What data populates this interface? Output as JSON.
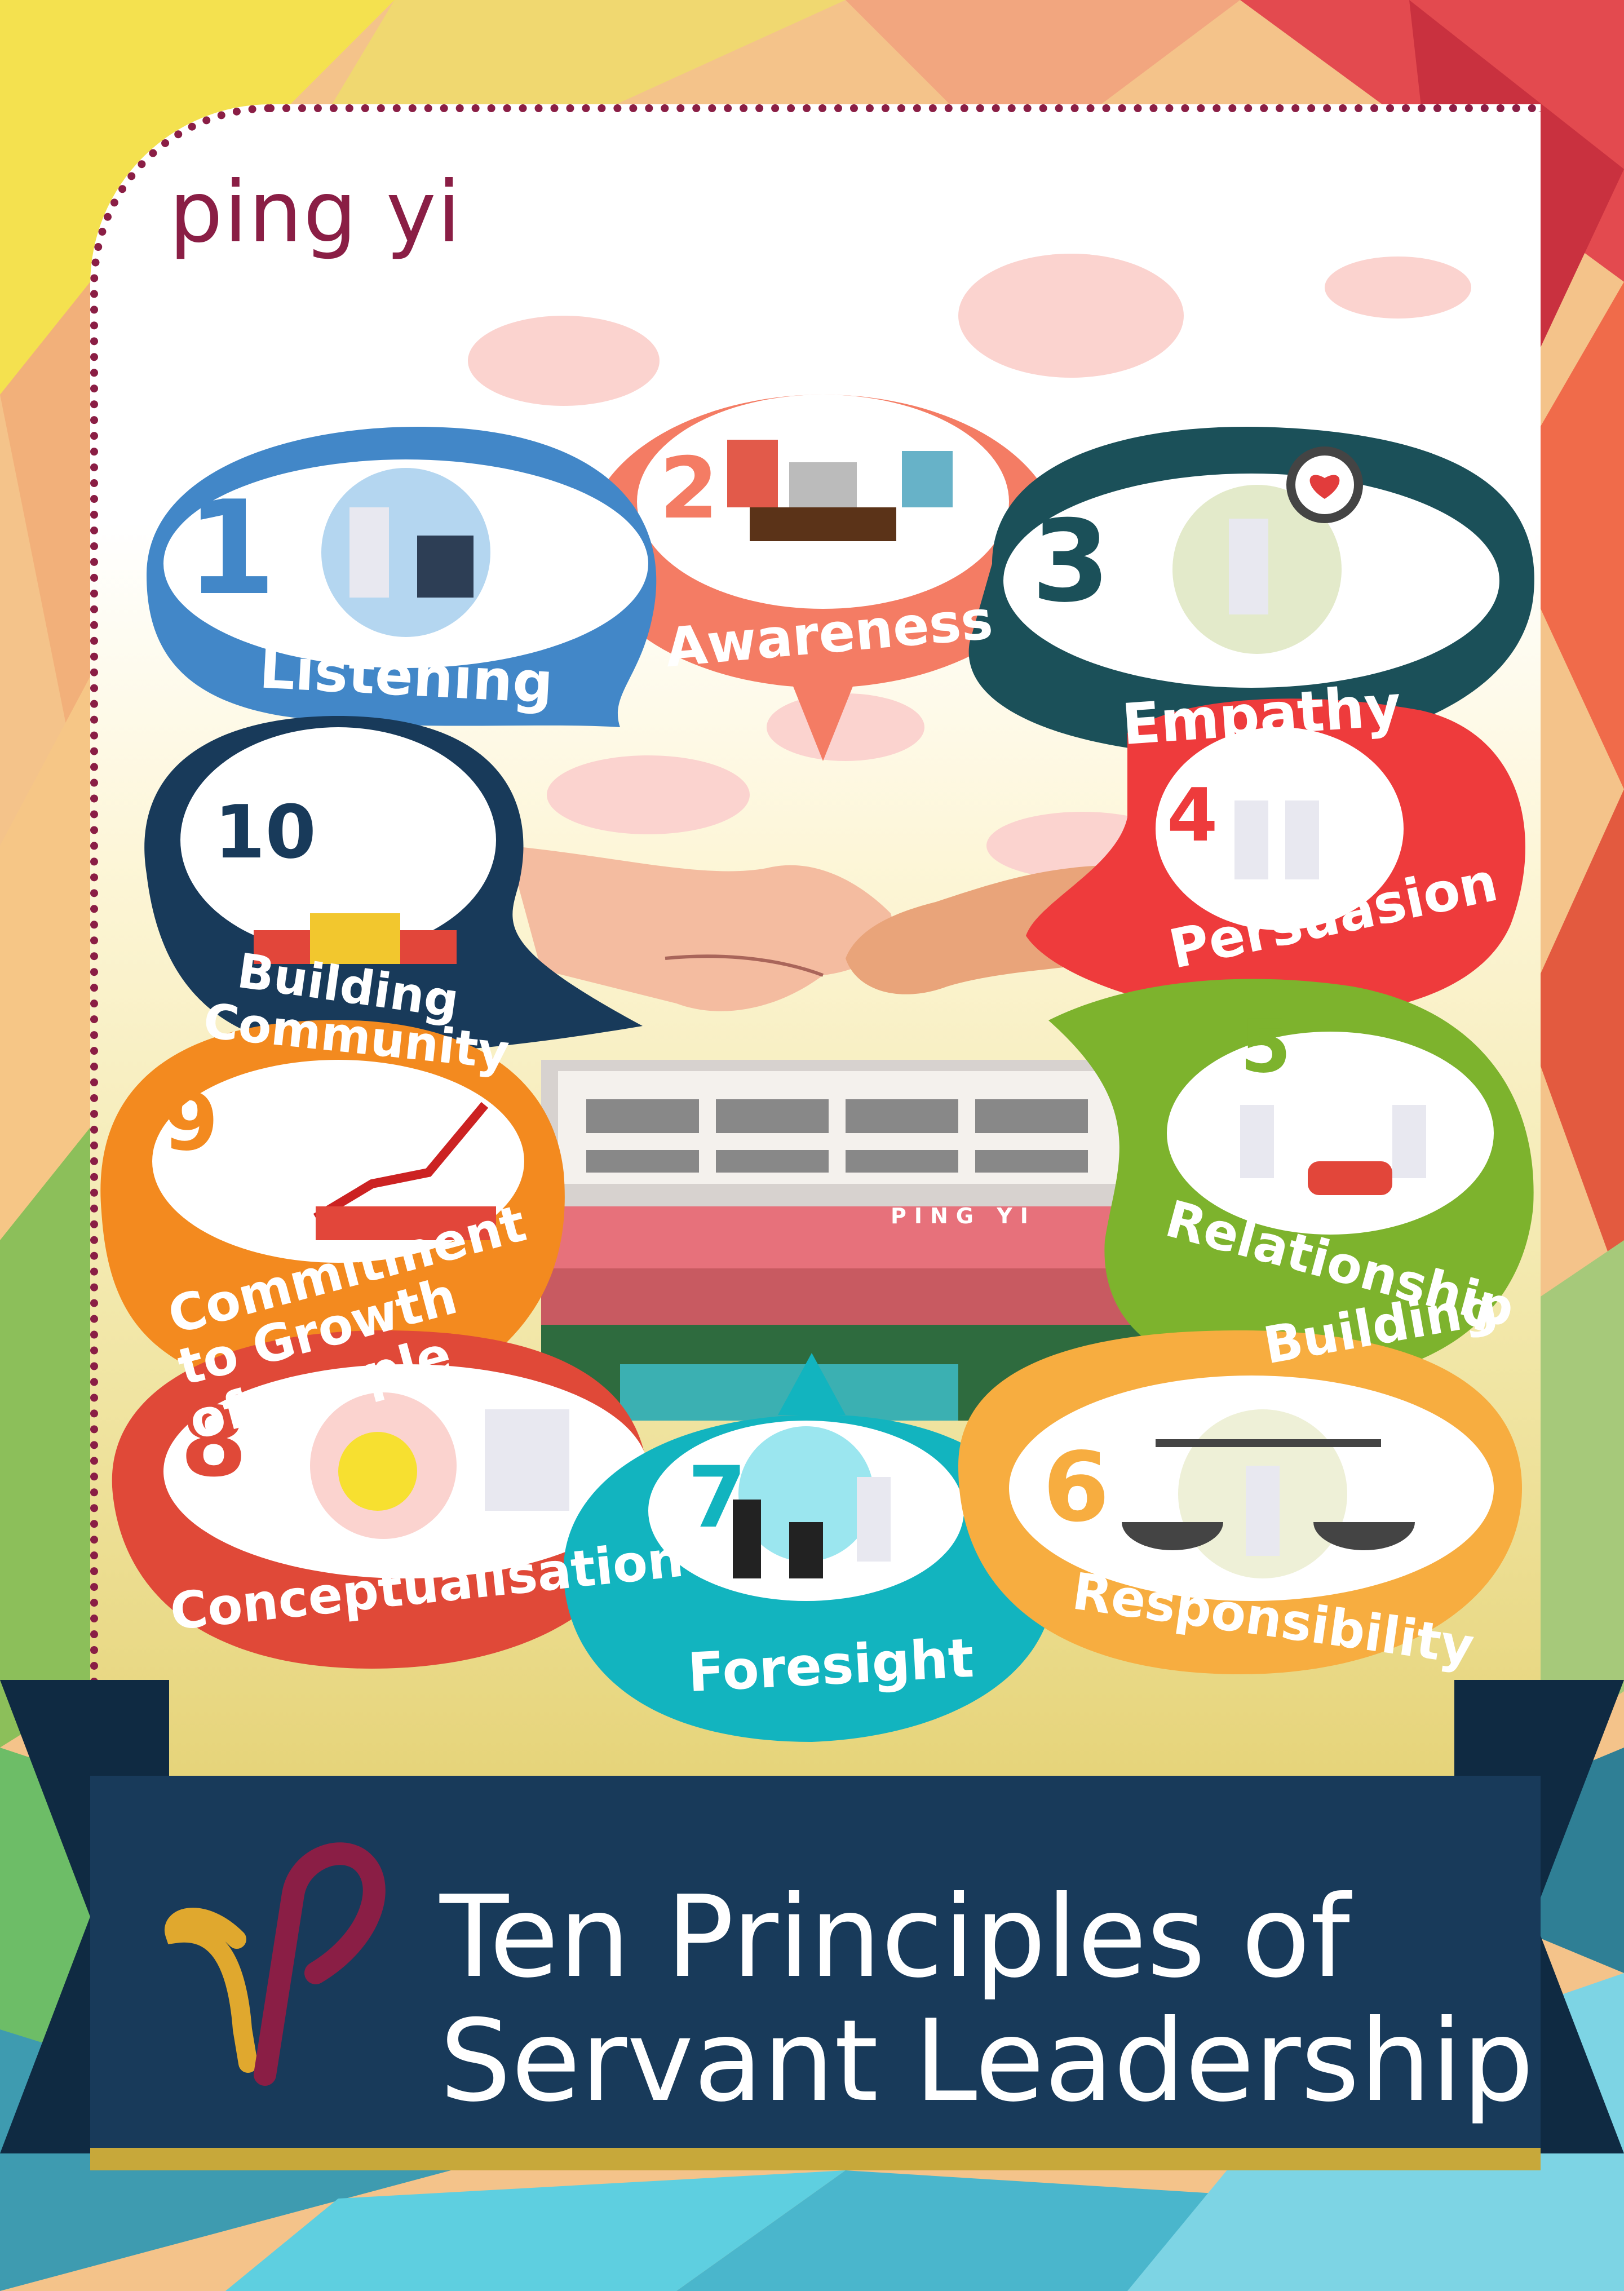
{
  "brand": {
    "name": "ping yi"
  },
  "school_sign": "PING YI",
  "principles": [
    {
      "number": "1",
      "label": "Listening",
      "color": "#4287c8",
      "num_color": "#4287c8"
    },
    {
      "number": "2",
      "label": "Awareness",
      "color": "#f47c64",
      "num_color": "#f47c64"
    },
    {
      "number": "3",
      "label": "Empathy",
      "color": "#1b5059",
      "num_color": "#1b5059"
    },
    {
      "number": "4",
      "label": "Persuasion",
      "color": "#ee3b3c",
      "num_color": "#ee3b3c"
    },
    {
      "number": "5",
      "label_line1": "Relationship",
      "label_line2": "Building",
      "color": "#7db32d",
      "num_color": "#7db32d"
    },
    {
      "number": "6",
      "label": "Responsibility",
      "color": "#f7ad40",
      "num_color": "#f7ad40"
    },
    {
      "number": "7",
      "label": "Foresight",
      "color": "#12b4bf",
      "num_color": "#12b4bf"
    },
    {
      "number": "8",
      "label": "Conceptualisation",
      "color": "#e04938",
      "num_color": "#e04938"
    },
    {
      "number": "9",
      "label_line1": "Commitment",
      "label_line2": "to Growth",
      "label_line3": "of people",
      "color": "#f38a1f",
      "num_color": "#f38a1f"
    },
    {
      "number": "10",
      "label_line1": "Building",
      "label_line2": "Community",
      "color": "#183a5a",
      "num_color": "#183a5a"
    }
  ],
  "title": {
    "line1": "Ten Principles of",
    "line2": "Servant Leadership"
  },
  "colors": {
    "brand": "#8a1e45",
    "banner": "#183a5a",
    "logo_gold": "#e0a82e",
    "logo_maroon": "#8a1e45"
  },
  "icons": [
    "school-logo-icon",
    "handshake-illustration",
    "school-building-photo"
  ]
}
